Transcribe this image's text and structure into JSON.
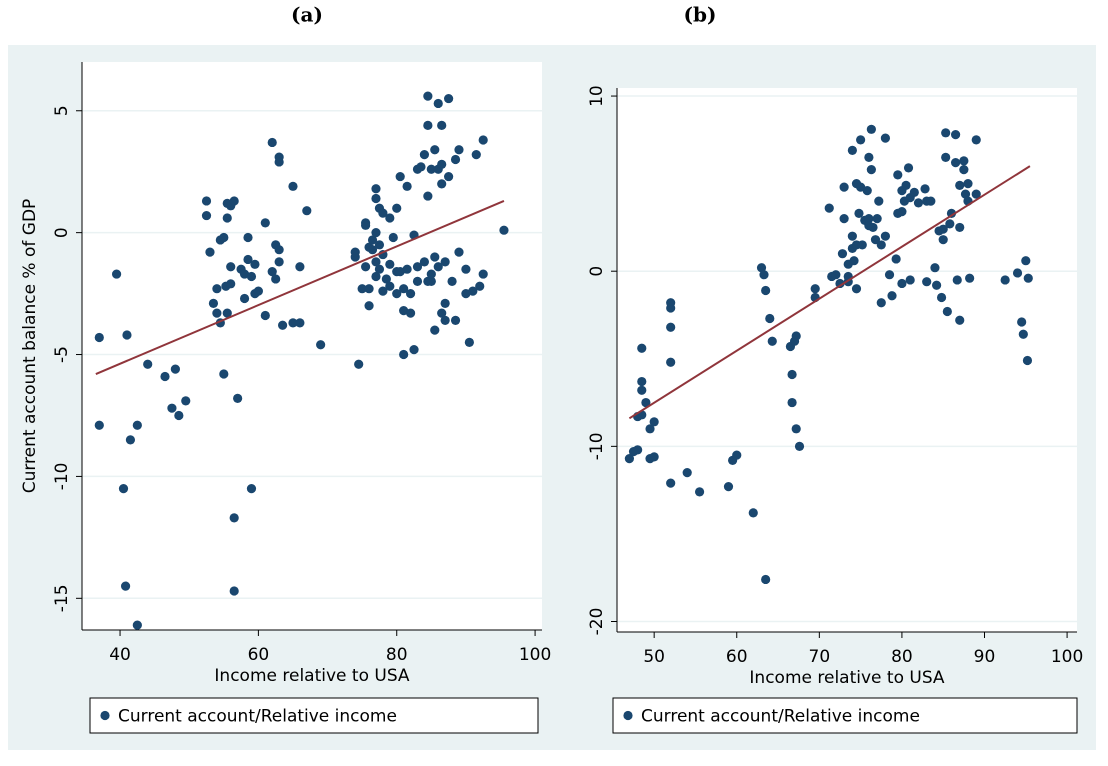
{
  "chart_data": [
    {
      "type": "scatter",
      "panel_label": "(a)",
      "xlabel": "Income relative to USA",
      "ylabel": "Current account balance % of GDP",
      "xlim": [
        34.5,
        101
      ],
      "ylim": [
        -16.3,
        7
      ],
      "xticks": [
        40,
        60,
        80,
        100
      ],
      "yticks": [
        -15,
        -10,
        -5,
        0,
        5
      ],
      "grid": true,
      "series": [
        {
          "name": "Current account/Relative income",
          "color": "#1a476f",
          "x": [
            37,
            37,
            39.5,
            40.5,
            41,
            40.8,
            41.5,
            42.5,
            42.5,
            44,
            46.5,
            47.5,
            48,
            48.5,
            49.5,
            52.5,
            52.5,
            53,
            53.5,
            54,
            54,
            54.5,
            54.5,
            55,
            55,
            55.3,
            55.5,
            55.5,
            55.5,
            56,
            56,
            56,
            56.5,
            56.5,
            56.5,
            57,
            57.5,
            58,
            58,
            58.5,
            58.5,
            59,
            59,
            59.5,
            59.5,
            60,
            61,
            61,
            62,
            62,
            62.5,
            62.5,
            63,
            63,
            63,
            63,
            63.5,
            65,
            65,
            66,
            66,
            67,
            69,
            74,
            74,
            74.5,
            75,
            75.5,
            75.5,
            75.5,
            76,
            76,
            76,
            76.5,
            76.5,
            77,
            77,
            77,
            77,
            77,
            77.5,
            77.5,
            77.5,
            78,
            78,
            78,
            78.5,
            79,
            79,
            79,
            79.5,
            80,
            80,
            80,
            80.5,
            80.5,
            81,
            81,
            81,
            81.5,
            81.5,
            82,
            82,
            82.5,
            82.5,
            83,
            83,
            83,
            83.5,
            84,
            84,
            84.5,
            84.5,
            84.5,
            84.5,
            85,
            85,
            85,
            85.5,
            85.5,
            85.5,
            86,
            86,
            86,
            86.5,
            86.5,
            86.5,
            86.5,
            87,
            87,
            87,
            87.5,
            87.5,
            88,
            88.5,
            88.5,
            89,
            89,
            90,
            90.5,
            90,
            91,
            91.5,
            92,
            92.5,
            92.5,
            95.5
          ],
          "values": [
            -4.3,
            -7.9,
            -1.7,
            -10.5,
            -4.2,
            -14.5,
            -8.5,
            -7.9,
            -16.1,
            -5.4,
            -5.9,
            -7.2,
            -5.6,
            -7.5,
            -6.9,
            1.3,
            0.7,
            -0.8,
            -2.9,
            -2.3,
            -3.3,
            -0.3,
            -3.7,
            -0.2,
            -5.8,
            -2.2,
            1.2,
            0.6,
            -3.3,
            1.1,
            -2.1,
            -1.4,
            1.3,
            -11.7,
            -14.7,
            -6.8,
            -1.5,
            -1.7,
            -2.7,
            -0.2,
            -1.1,
            -1.8,
            -10.5,
            -2.5,
            -1.3,
            -2.4,
            0.4,
            -3.4,
            -1.6,
            3.7,
            -0.5,
            -1.9,
            3.1,
            2.9,
            -0.7,
            -1.2,
            -3.8,
            1.9,
            -3.7,
            -1.4,
            -3.7,
            0.9,
            -4.6,
            -1.0,
            -0.8,
            -5.4,
            -2.3,
            0.4,
            0.3,
            -1.4,
            -0.6,
            -2.3,
            -3.0,
            -0.3,
            -0.7,
            1.8,
            1.4,
            0.0,
            -1.2,
            -1.8,
            1.0,
            -0.5,
            -1.5,
            0.8,
            -2.4,
            -0.9,
            -1.9,
            0.6,
            -1.3,
            -2.2,
            -0.2,
            1.0,
            -2.5,
            -1.6,
            2.3,
            -1.6,
            -3.2,
            -5.0,
            -2.3,
            1.9,
            -1.5,
            -3.3,
            -2.5,
            -4.8,
            -0.1,
            2.6,
            -2.0,
            -1.4,
            2.7,
            3.2,
            -1.2,
            5.6,
            4.4,
            1.5,
            -2.0,
            -2.0,
            2.6,
            -1.7,
            3.4,
            -4.0,
            -1.0,
            5.3,
            2.6,
            -1.4,
            4.4,
            2.8,
            2.0,
            -3.3,
            -2.9,
            -1.2,
            -3.6,
            5.5,
            2.3,
            -2.0,
            -3.6,
            3.0,
            3.4,
            -0.8,
            -1.5,
            -4.5,
            -2.5,
            -2.4,
            3.2,
            -2.2,
            -1.7,
            3.8,
            0.1
          ]
        }
      ],
      "fit": {
        "color": "#90353b",
        "x": [
          36.5,
          95.5
        ],
        "y": [
          -5.8,
          1.3
        ]
      }
    },
    {
      "type": "scatter",
      "panel_label": "(b)",
      "xlabel": "Income relative to USA",
      "xlim": [
        45.5,
        101.2
      ],
      "ylim": [
        -20.6,
        10.46
      ],
      "xticks": [
        50,
        60,
        70,
        80,
        90,
        100
      ],
      "yticks": [
        -20,
        -10,
        0,
        10
      ],
      "grid": true,
      "series": [
        {
          "name": "Current account/Relative income",
          "color": "#1a476f",
          "x": [
            47,
            47.5,
            48,
            48,
            48.5,
            48.5,
            48.5,
            48.5,
            49,
            49.5,
            49.5,
            50,
            50,
            52,
            52,
            52,
            52,
            52,
            54,
            55.5,
            59,
            59.5,
            60,
            62,
            63,
            63.3,
            63.5,
            63.5,
            64,
            64.3,
            66.5,
            66.7,
            66.7,
            67,
            67.2,
            67.2,
            67.6,
            69.5,
            69.5,
            71.2,
            71.5,
            72,
            72.5,
            72.8,
            73,
            73,
            73.5,
            73.5,
            73.5,
            74,
            74,
            74,
            74.2,
            74.5,
            74.5,
            74.5,
            74.8,
            75,
            75,
            75.2,
            75.5,
            75.8,
            76,
            76,
            76,
            76.3,
            76.3,
            76.5,
            76.8,
            77,
            77.2,
            77.5,
            77.5,
            78,
            78,
            78.5,
            78.8,
            79.3,
            79.5,
            79.5,
            80,
            80,
            80,
            80.3,
            80.5,
            80.8,
            81,
            81,
            81.5,
            82,
            82.8,
            83,
            83,
            83.5,
            84,
            84.2,
            84.5,
            84.8,
            85,
            85,
            85.3,
            85.3,
            85.5,
            85.8,
            86,
            86.5,
            86.5,
            86.7,
            87,
            87,
            87,
            87.5,
            87.5,
            87.7,
            88,
            88,
            88.2,
            89,
            89,
            92.5,
            94,
            94.5,
            94.7,
            95,
            95.2,
            95.3
          ],
          "values": [
            -10.7,
            -10.3,
            -10.2,
            -8.3,
            -4.4,
            -6.3,
            -6.8,
            -8.2,
            -7.5,
            -10.7,
            -9.0,
            -8.6,
            -10.6,
            -2.1,
            -1.8,
            -3.2,
            -5.2,
            -12.1,
            -11.5,
            -12.6,
            -12.3,
            -10.8,
            -10.5,
            -13.8,
            0.2,
            -0.2,
            -17.6,
            -1.1,
            -2.7,
            -4.0,
            -4.3,
            -5.9,
            -7.5,
            -4.0,
            -3.7,
            -9.0,
            -10.0,
            -1.0,
            -1.5,
            3.6,
            -0.3,
            -0.2,
            -0.7,
            1.0,
            4.8,
            3.0,
            -0.6,
            -0.3,
            0.4,
            6.9,
            2.0,
            1.3,
            0.6,
            5.0,
            1.5,
            -1.0,
            3.3,
            7.5,
            4.8,
            1.5,
            2.9,
            4.6,
            6.5,
            3.0,
            2.6,
            8.1,
            5.8,
            2.5,
            1.8,
            3.0,
            4.0,
            1.5,
            -1.8,
            7.6,
            2.0,
            -0.2,
            -1.4,
            0.7,
            3.3,
            5.5,
            4.6,
            3.4,
            -0.7,
            4.0,
            4.9,
            5.9,
            4.2,
            -0.5,
            4.5,
            3.9,
            4.7,
            4.0,
            -0.6,
            4.0,
            0.2,
            -0.8,
            2.3,
            -1.5,
            2.4,
            1.8,
            7.9,
            6.5,
            -2.3,
            2.7,
            3.3,
            7.8,
            6.2,
            -0.5,
            4.9,
            2.5,
            -2.8,
            6.3,
            5.8,
            4.4,
            5.0,
            4.0,
            -0.4,
            7.5,
            4.4,
            -0.5,
            -0.1,
            -2.9,
            -3.6,
            0.6,
            -5.1,
            -0.4
          ]
        }
      ],
      "fit": {
        "color": "#90353b",
        "x": [
          47,
          95.5
        ],
        "y": [
          -8.4,
          6
        ]
      }
    }
  ]
}
